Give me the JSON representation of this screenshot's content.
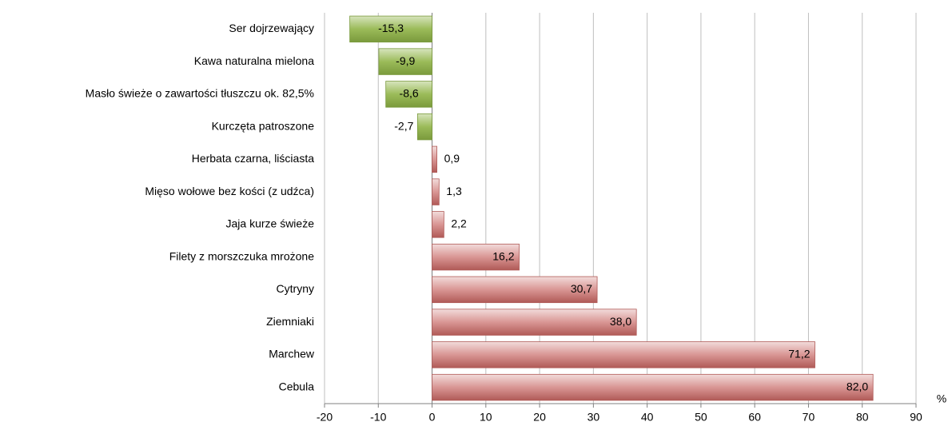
{
  "chart_data": {
    "type": "bar",
    "orientation": "horizontal",
    "categories": [
      "Ser dojrzewający",
      "Kawa naturalna mielona",
      "Masło świeże o zawartości tłuszczu ok. 82,5%",
      "Kurczęta patroszone",
      "Herbata czarna, liściasta",
      "Mięso wołowe bez kości (z udźca)",
      "Jaja kurze świeże",
      "Filety z morszczuka mrożone",
      "Cytryny",
      "Ziemniaki",
      "Marchew",
      "Cebula"
    ],
    "values": [
      -15.3,
      -9.9,
      -8.6,
      -2.7,
      0.9,
      1.3,
      2.2,
      16.2,
      30.7,
      38.0,
      71.2,
      82.0
    ],
    "value_labels": [
      "-15,3",
      "-9,9",
      "-8,6",
      "-2,7",
      "0,9",
      "1,3",
      "2,2",
      "16,2",
      "30,7",
      "38,0",
      "71,2",
      "82,0"
    ],
    "negative_color": "#9bbb59",
    "positive_color": "#d99694",
    "xlim": [
      -20,
      90
    ],
    "xticks": [
      -20,
      -10,
      0,
      10,
      20,
      30,
      40,
      50,
      60,
      70,
      80,
      90
    ],
    "x_unit": "%",
    "grid": true
  }
}
